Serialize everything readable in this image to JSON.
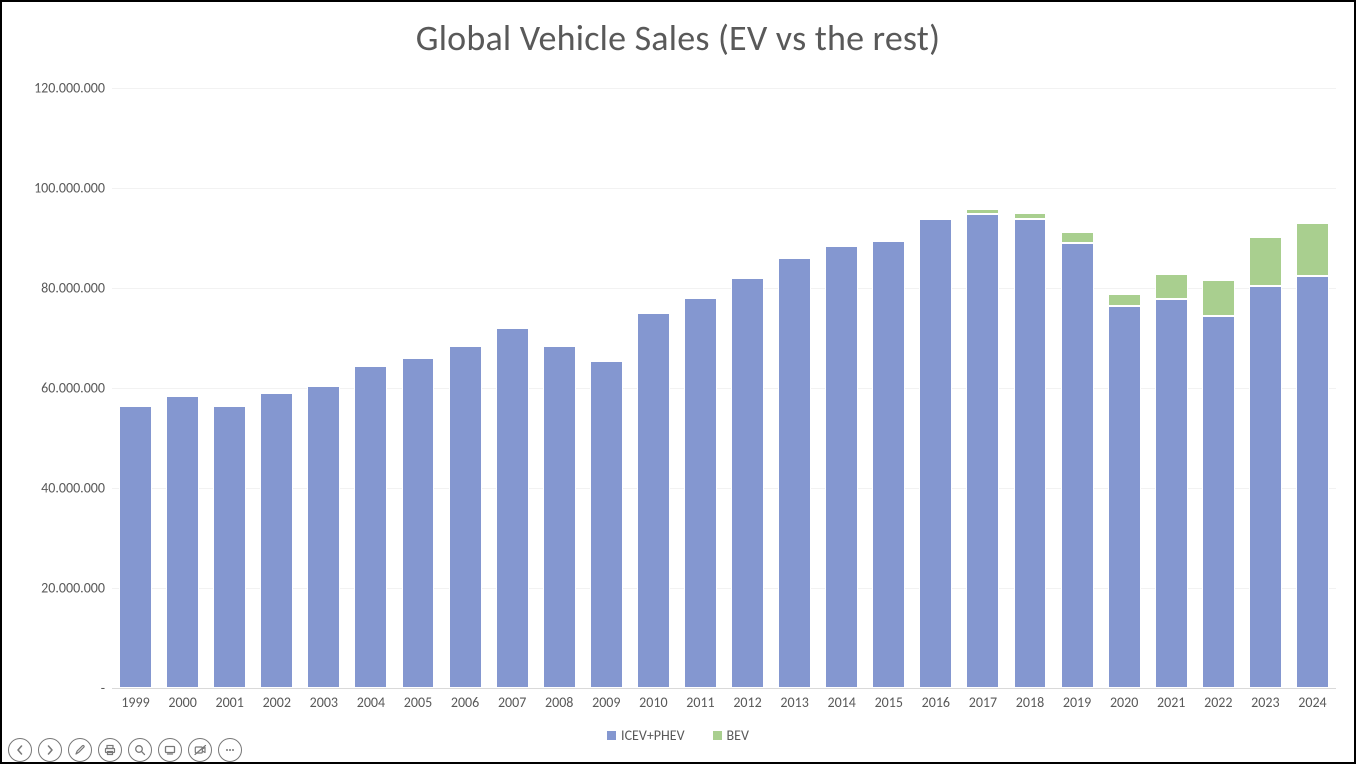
{
  "chart": {
    "type": "stacked-bar",
    "title": "Global Vehicle Sales (EV vs the rest)",
    "title_fontsize": 36,
    "title_color": "#595959",
    "background_color": "#ffffff",
    "outer_border_color": "#000000",
    "grid_color": "#f2f2f2",
    "baseline_color": "#d9d9d9",
    "axis_label_color": "#595959",
    "axis_label_fontsize": 14,
    "ylim": [
      0,
      120000000
    ],
    "ytick_step": 20000000,
    "ytick_labels": [
      "-",
      "20.000.000",
      "40.000.000",
      "60.000.000",
      "80.000.000",
      "100.000.000",
      "120.000.000"
    ],
    "bar_gap_ratio": 0.3,
    "categories": [
      "1999",
      "2000",
      "2001",
      "2002",
      "2003",
      "2004",
      "2005",
      "2006",
      "2007",
      "2008",
      "2009",
      "2010",
      "2011",
      "2012",
      "2013",
      "2014",
      "2015",
      "2016",
      "2017",
      "2018",
      "2019",
      "2020",
      "2021",
      "2022",
      "2023",
      "2024"
    ],
    "series": [
      {
        "name": "ICEV+PHEV",
        "color": "#8497d0",
        "values": [
          56500000,
          58500000,
          56500000,
          59000000,
          60500000,
          64500000,
          66000000,
          68500000,
          72000000,
          68500000,
          65500000,
          75000000,
          78000000,
          82000000,
          86000000,
          88500000,
          89500000,
          93800000,
          94800000,
          93800000,
          89000000,
          76500000,
          77800000,
          74500000,
          80500000,
          82500000
        ]
      },
      {
        "name": "BEV",
        "color": "#a9cf8f",
        "values": [
          0,
          0,
          0,
          0,
          0,
          0,
          0,
          0,
          0,
          0,
          0,
          0,
          0,
          0,
          0,
          0,
          200000,
          200000,
          1000000,
          1300000,
          2300000,
          2300000,
          5000000,
          7200000,
          9800000,
          10500000
        ]
      }
    ],
    "legend": {
      "items": [
        {
          "label": "ICEV+PHEV",
          "color": "#8497d0"
        },
        {
          "label": "BEV",
          "color": "#a9cf8f"
        }
      ]
    }
  },
  "toolbar": {
    "icons": [
      "prev",
      "next",
      "pen",
      "print",
      "zoom",
      "screen",
      "camera-off",
      "more"
    ]
  }
}
